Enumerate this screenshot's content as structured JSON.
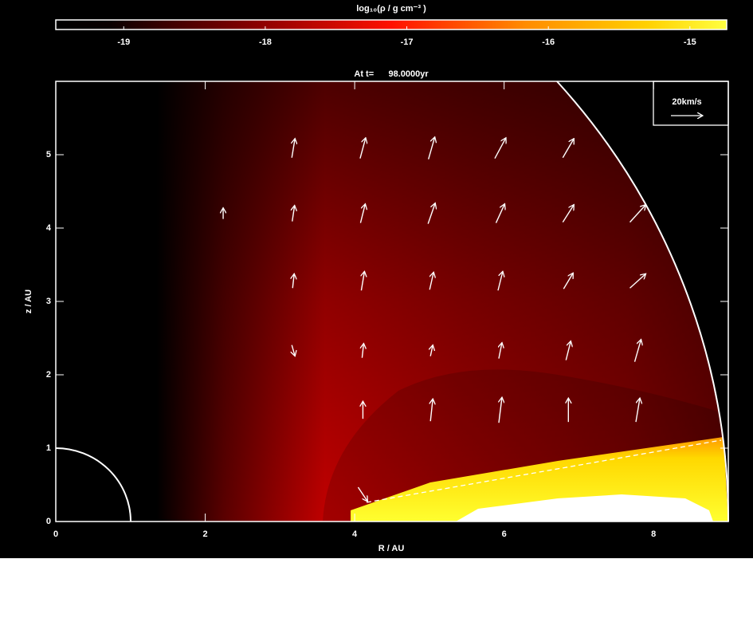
{
  "chart_data": {
    "type": "quiver",
    "title": "At t=      98.0000yr",
    "x_label": "R / AU",
    "y_label": "z / AU",
    "xlim": [
      0,
      9
    ],
    "ylim": [
      0,
      6
    ],
    "xticks": [
      0,
      2,
      4,
      6,
      8
    ],
    "yticks": [
      0,
      1,
      2,
      3,
      4,
      5
    ],
    "colorbar": {
      "label": "log₁₀(ρ / g cm⁻³ )",
      "lim": [
        -19.48,
        -14.74
      ],
      "ticks": [
        -19,
        -18,
        -17,
        -16,
        -15
      ]
    },
    "reference": {
      "value": 20,
      "label": "20km/s"
    },
    "arrow_color": "#ffffff",
    "R": [
      3.18,
      4.11,
      5.03,
      5.95,
      6.86,
      2.24,
      3.18,
      4.11,
      5.03,
      5.95,
      6.86,
      7.79,
      3.18,
      4.11,
      5.03,
      5.95,
      6.86,
      7.79,
      3.18,
      4.11,
      5.03,
      5.95,
      6.86,
      7.79,
      4.11,
      5.03,
      5.95,
      6.86,
      7.79,
      4.11
    ],
    "z": [
      5.09,
      5.09,
      5.09,
      5.09,
      5.09,
      4.2,
      4.2,
      4.2,
      4.2,
      4.2,
      4.2,
      4.2,
      3.28,
      3.28,
      3.28,
      3.28,
      3.28,
      3.28,
      2.33,
      2.33,
      2.33,
      2.33,
      2.33,
      2.33,
      1.52,
      1.52,
      1.52,
      1.52,
      1.52,
      0.37
    ],
    "vR": [
      2,
      3.5,
      4,
      7,
      7,
      0,
      1.5,
      3,
      4.5,
      5.5,
      7,
      10,
      1,
      2,
      2.5,
      3,
      6,
      10,
      2,
      1,
      1.5,
      2,
      3,
      4,
      0,
      1.5,
      2,
      0,
      2.5,
      6
    ],
    "vz": [
      12,
      13,
      14,
      13,
      12,
      7,
      10,
      12,
      13,
      12,
      11,
      11,
      9,
      12,
      11,
      12,
      10,
      9,
      -7,
      9,
      7,
      10,
      12,
      14,
      11,
      14,
      16,
      15,
      15,
      -9
    ]
  }
}
